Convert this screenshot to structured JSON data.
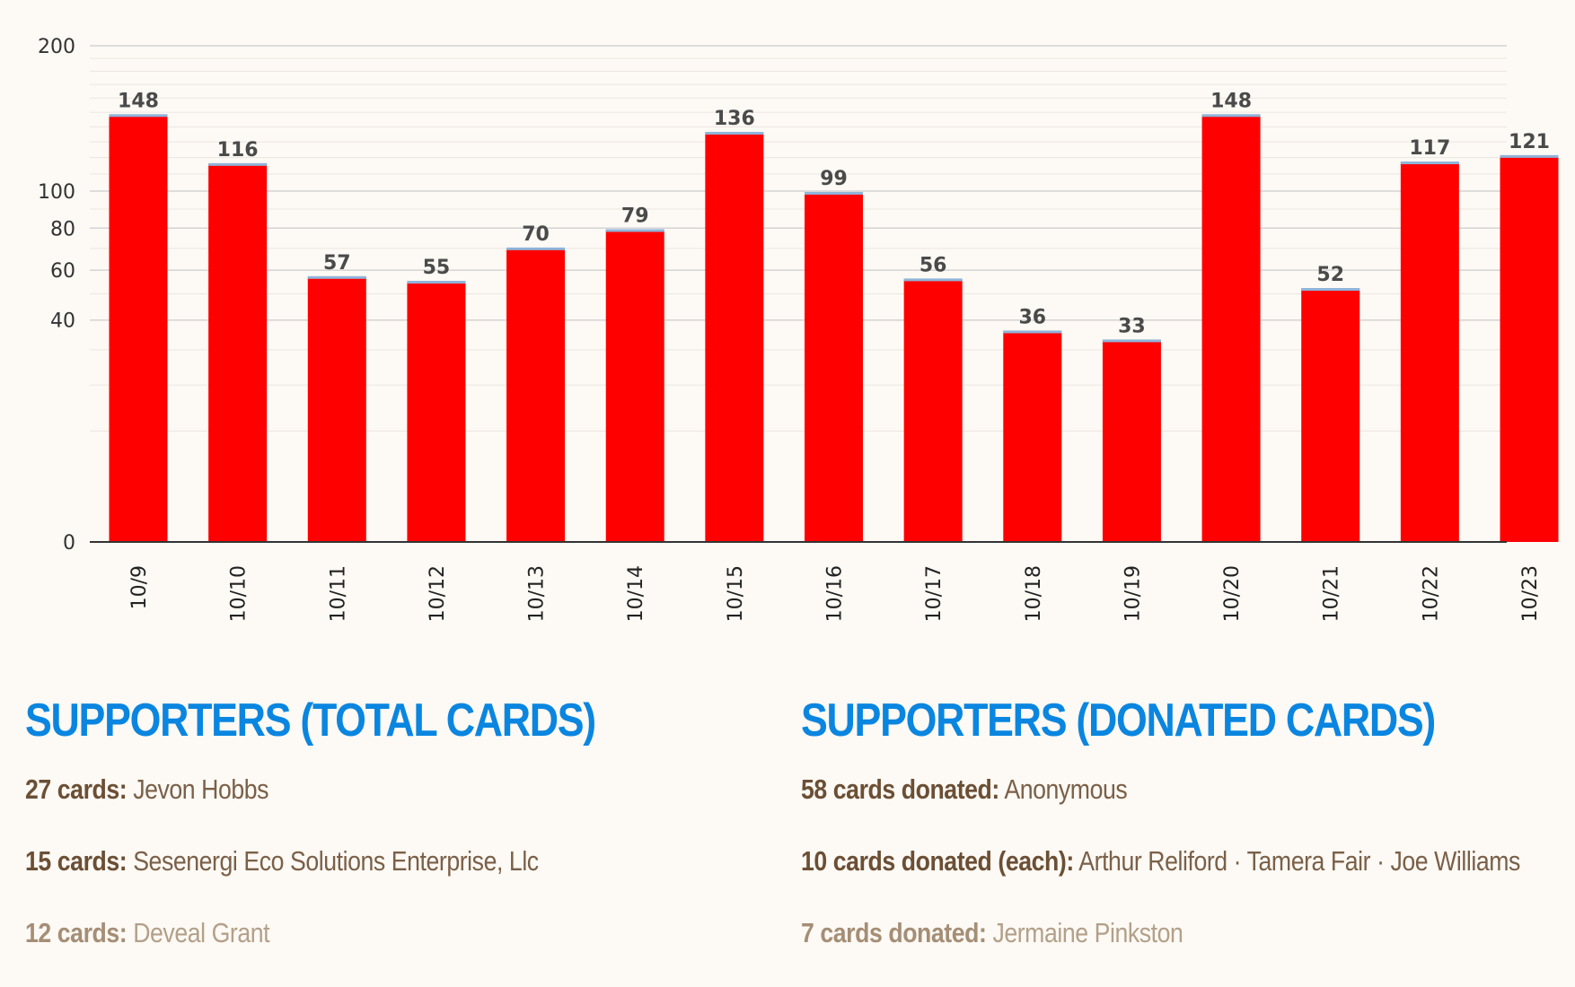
{
  "chart_data": {
    "type": "bar",
    "categories": [
      "10/9",
      "10/10",
      "10/11",
      "10/12",
      "10/13",
      "10/14",
      "10/15",
      "10/16",
      "10/17",
      "10/18",
      "10/19",
      "10/20",
      "10/21",
      "10/22",
      "10/23"
    ],
    "values": [
      148,
      116,
      57,
      55,
      70,
      79,
      136,
      99,
      56,
      36,
      33,
      148,
      52,
      117,
      121
    ],
    "y_ticks": [
      0,
      40,
      60,
      80,
      100,
      200
    ],
    "ylim": [
      0,
      200
    ],
    "y_scale": "sqrt",
    "grid": true,
    "title": "",
    "xlabel": "",
    "ylabel": "",
    "colors": {
      "bar": "#ff0000",
      "bar_top": "#8fb3d9",
      "grid_major": "#d4d4d4",
      "grid_minor": "#ebe6e0",
      "axis": "#333333"
    }
  },
  "supporters_total": {
    "heading": "SUPPORTERS (TOTAL CARDS)",
    "entries": [
      {
        "count": "27 cards:",
        "names": "Jevon Hobbs"
      },
      {
        "count": "15 cards:",
        "names": "Sesenergi Eco Solutions Enterprise, Llc"
      },
      {
        "count": "12 cards:",
        "names": "Deveal Grant"
      }
    ]
  },
  "supporters_donated": {
    "heading": "SUPPORTERS (DONATED CARDS)",
    "entries": [
      {
        "count": "58 cards donated:",
        "names": "Anonymous"
      },
      {
        "count": "10 cards donated (each):",
        "names": "Arthur Reliford · Tamera Fair · Joe Williams"
      },
      {
        "count": "7 cards donated:",
        "names": "Jermaine Pinkston"
      }
    ]
  }
}
